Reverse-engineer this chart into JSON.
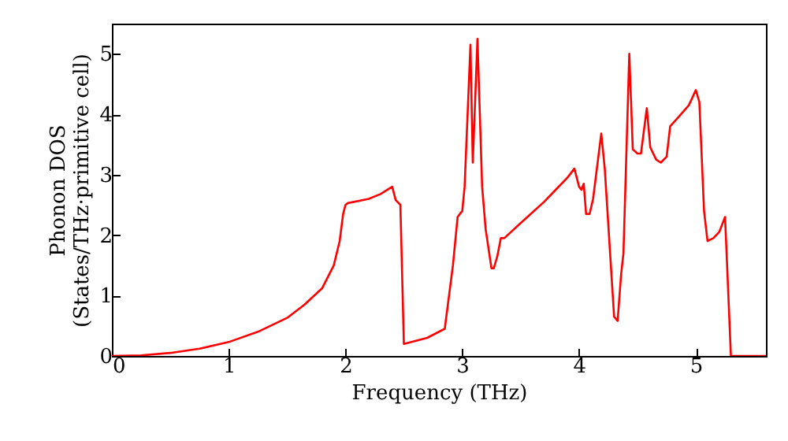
{
  "chart_data": {
    "type": "line",
    "xlabel": "Frequency (THz)",
    "ylabel": "Phonon DOS\n(States/THz·primitive cell)",
    "xlim": [
      0,
      5.6
    ],
    "ylim": [
      0,
      5.5
    ],
    "xticks": [
      0,
      1,
      2,
      3,
      4,
      5
    ],
    "yticks": [
      0,
      1,
      2,
      3,
      4,
      5
    ],
    "grid": false,
    "line_style": "solid",
    "series": [
      {
        "color": "#ff0000",
        "x": [
          0,
          0.25,
          0.5,
          0.75,
          1.0,
          1.25,
          1.5,
          1.65,
          1.8,
          1.9,
          1.95,
          1.98,
          2.0,
          2.02,
          2.2,
          2.3,
          2.4,
          2.43,
          2.47,
          2.5,
          2.7,
          2.85,
          2.92,
          2.96,
          3.0,
          3.02,
          3.07,
          3.09,
          3.13,
          3.17,
          3.2,
          3.25,
          3.27,
          3.3,
          3.33,
          3.36,
          3.5,
          3.7,
          3.8,
          3.9,
          3.96,
          4.0,
          4.02,
          4.04,
          4.06,
          4.09,
          4.12,
          4.19,
          4.22,
          4.3,
          4.33,
          4.36,
          4.38,
          4.43,
          4.46,
          4.5,
          4.53,
          4.58,
          4.61,
          4.66,
          4.7,
          4.75,
          4.78,
          4.85,
          4.94,
          5.0,
          5.03,
          5.07,
          5.1,
          5.15,
          5.2,
          5.25,
          5.3,
          5.6
        ],
        "values": [
          0,
          0.01,
          0.05,
          0.12,
          0.23,
          0.4,
          0.63,
          0.85,
          1.12,
          1.5,
          1.9,
          2.35,
          2.5,
          2.53,
          2.6,
          2.68,
          2.8,
          2.58,
          2.5,
          0.2,
          0.3,
          0.45,
          1.5,
          2.3,
          2.4,
          2.8,
          5.15,
          3.2,
          5.25,
          2.8,
          2.1,
          1.45,
          1.45,
          1.65,
          1.95,
          1.95,
          2.2,
          2.55,
          2.75,
          2.95,
          3.1,
          2.8,
          2.75,
          2.85,
          2.35,
          2.35,
          2.6,
          3.68,
          3.1,
          0.65,
          0.58,
          1.35,
          1.7,
          5.0,
          3.42,
          3.35,
          3.35,
          4.1,
          3.45,
          3.25,
          3.2,
          3.3,
          3.8,
          3.95,
          4.15,
          4.4,
          4.2,
          2.4,
          1.9,
          1.95,
          2.05,
          2.3,
          0,
          0
        ]
      }
    ]
  }
}
